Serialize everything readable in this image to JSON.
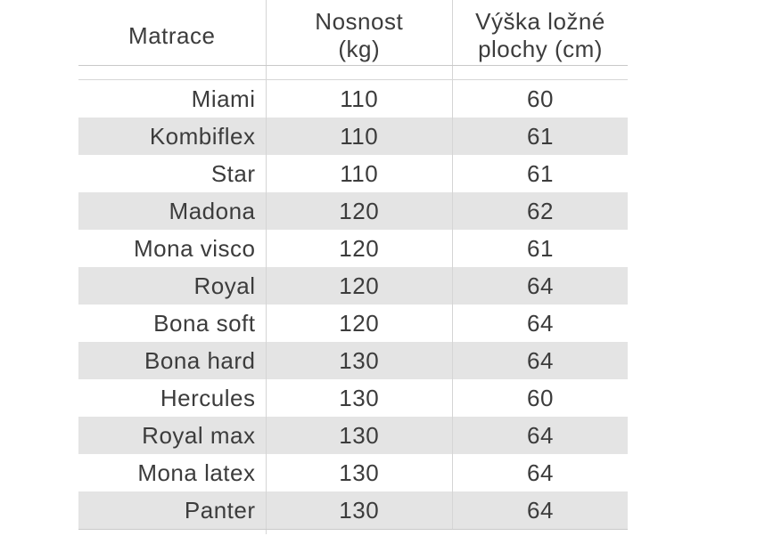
{
  "chart_data": {
    "type": "table",
    "columns": [
      {
        "id": "matrace",
        "lines": [
          "Matrace"
        ]
      },
      {
        "id": "nosnost",
        "lines": [
          "Nosnost",
          "(kg)"
        ]
      },
      {
        "id": "vyska",
        "lines": [
          "Výška ložné",
          "plochy (cm)"
        ]
      }
    ],
    "rows": [
      {
        "name": "Miami",
        "load_capacity_kg": "110",
        "bed_height_cm": "60"
      },
      {
        "name": "Kombiflex",
        "load_capacity_kg": "110",
        "bed_height_cm": "61"
      },
      {
        "name": "Star",
        "load_capacity_kg": "110",
        "bed_height_cm": "61"
      },
      {
        "name": "Madona",
        "load_capacity_kg": "120",
        "bed_height_cm": "62"
      },
      {
        "name": "Mona visco",
        "load_capacity_kg": "120",
        "bed_height_cm": "61"
      },
      {
        "name": "Royal",
        "load_capacity_kg": "120",
        "bed_height_cm": "64"
      },
      {
        "name": "Bona soft",
        "load_capacity_kg": "120",
        "bed_height_cm": "64"
      },
      {
        "name": "Bona hard",
        "load_capacity_kg": "130",
        "bed_height_cm": "64"
      },
      {
        "name": "Hercules",
        "load_capacity_kg": "130",
        "bed_height_cm": "60"
      },
      {
        "name": "Royal max",
        "load_capacity_kg": "130",
        "bed_height_cm": "64"
      },
      {
        "name": "Mona latex",
        "load_capacity_kg": "130",
        "bed_height_cm": "64"
      },
      {
        "name": "Panter",
        "load_capacity_kg": "130",
        "bed_height_cm": "64"
      }
    ]
  },
  "colors": {
    "background": "#ffffff",
    "alt_row_bg": "#e4e4e4",
    "grid_line": "#c9c9c9",
    "text": "#3c3c3c"
  }
}
